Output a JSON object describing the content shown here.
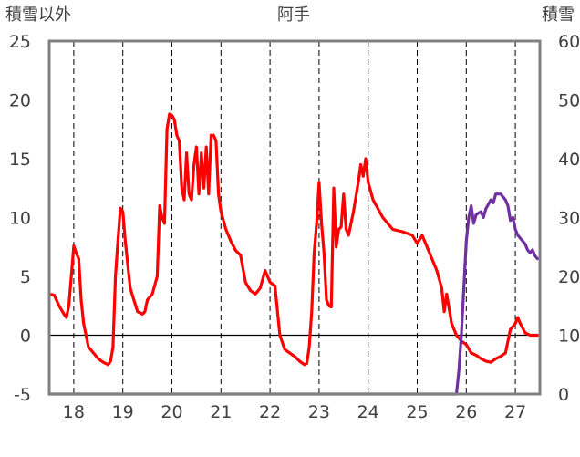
{
  "chart_data": {
    "type": "line",
    "title": "阿手",
    "left_axis_label": "積雪以外",
    "right_axis_label": "積雪",
    "left_ylim": [
      -5,
      25
    ],
    "left_ticks": [
      -5,
      0,
      5,
      10,
      15,
      20,
      25
    ],
    "right_ylim": [
      0,
      60
    ],
    "right_ticks": [
      0,
      10,
      20,
      30,
      40,
      50,
      60
    ],
    "xlim": [
      17.5,
      27.5
    ],
    "x_ticks": [
      18,
      19,
      20,
      21,
      22,
      23,
      24,
      25,
      26,
      27
    ],
    "x_tick_labels": [
      "18",
      "19",
      "20",
      "21",
      "22",
      "23",
      "24",
      "25",
      "26",
      "27"
    ],
    "grid": "vertical dashed at day boundaries, horizontal at 0",
    "series": [
      {
        "axis": "left",
        "color": "#ff0000",
        "points": [
          [
            17.5,
            3.5
          ],
          [
            17.6,
            3.4
          ],
          [
            17.7,
            2.5
          ],
          [
            17.8,
            1.8
          ],
          [
            17.85,
            1.5
          ],
          [
            17.9,
            2.5
          ],
          [
            17.95,
            5.0
          ],
          [
            18.0,
            7.6
          ],
          [
            18.05,
            7.0
          ],
          [
            18.1,
            6.5
          ],
          [
            18.15,
            3.0
          ],
          [
            18.2,
            1.0
          ],
          [
            18.3,
            -1.0
          ],
          [
            18.4,
            -1.5
          ],
          [
            18.5,
            -2.0
          ],
          [
            18.6,
            -2.3
          ],
          [
            18.7,
            -2.5
          ],
          [
            18.75,
            -2.2
          ],
          [
            18.8,
            -1.0
          ],
          [
            18.85,
            5.0
          ],
          [
            18.9,
            8.0
          ],
          [
            18.95,
            10.8
          ],
          [
            19.0,
            10.5
          ],
          [
            19.05,
            8.0
          ],
          [
            19.15,
            4.0
          ],
          [
            19.3,
            2.0
          ],
          [
            19.4,
            1.8
          ],
          [
            19.45,
            2.0
          ],
          [
            19.5,
            3.0
          ],
          [
            19.6,
            3.5
          ],
          [
            19.7,
            5.0
          ],
          [
            19.75,
            11.0
          ],
          [
            19.8,
            10.0
          ],
          [
            19.85,
            9.5
          ],
          [
            19.9,
            17.5
          ],
          [
            19.95,
            18.8
          ],
          [
            20.0,
            18.7
          ],
          [
            20.05,
            18.3
          ],
          [
            20.1,
            17.0
          ],
          [
            20.15,
            16.5
          ],
          [
            20.2,
            12.5
          ],
          [
            20.25,
            11.5
          ],
          [
            20.3,
            15.5
          ],
          [
            20.35,
            12.0
          ],
          [
            20.4,
            11.5
          ],
          [
            20.45,
            14.5
          ],
          [
            20.5,
            16.0
          ],
          [
            20.55,
            12.0
          ],
          [
            20.6,
            15.5
          ],
          [
            20.65,
            12.5
          ],
          [
            20.7,
            16.0
          ],
          [
            20.75,
            12.0
          ],
          [
            20.8,
            17.0
          ],
          [
            20.85,
            17.0
          ],
          [
            20.9,
            16.5
          ],
          [
            20.95,
            12.0
          ],
          [
            21.0,
            10.5
          ],
          [
            21.1,
            9.0
          ],
          [
            21.2,
            8.0
          ],
          [
            21.3,
            7.2
          ],
          [
            21.4,
            6.8
          ],
          [
            21.5,
            4.5
          ],
          [
            21.6,
            3.8
          ],
          [
            21.7,
            3.5
          ],
          [
            21.8,
            4.0
          ],
          [
            21.9,
            5.5
          ],
          [
            22.0,
            4.5
          ],
          [
            22.1,
            4.2
          ],
          [
            22.2,
            0.0
          ],
          [
            22.3,
            -1.2
          ],
          [
            22.4,
            -1.5
          ],
          [
            22.5,
            -1.8
          ],
          [
            22.6,
            -2.2
          ],
          [
            22.7,
            -2.5
          ],
          [
            22.75,
            -2.4
          ],
          [
            22.8,
            -1.0
          ],
          [
            22.85,
            2.0
          ],
          [
            22.9,
            7.0
          ],
          [
            22.95,
            9.5
          ],
          [
            23.0,
            13.0
          ],
          [
            23.05,
            9.5
          ],
          [
            23.1,
            7.0
          ],
          [
            23.15,
            3.0
          ],
          [
            23.2,
            2.5
          ],
          [
            23.25,
            2.4
          ],
          [
            23.3,
            12.5
          ],
          [
            23.35,
            7.5
          ],
          [
            23.4,
            9.0
          ],
          [
            23.45,
            9.2
          ],
          [
            23.5,
            12.0
          ],
          [
            23.55,
            9.0
          ],
          [
            23.6,
            8.5
          ],
          [
            23.7,
            10.5
          ],
          [
            23.8,
            13.0
          ],
          [
            23.85,
            14.5
          ],
          [
            23.9,
            13.5
          ],
          [
            23.95,
            15.0
          ],
          [
            24.0,
            13.0
          ],
          [
            24.1,
            11.5
          ],
          [
            24.3,
            10.0
          ],
          [
            24.5,
            9.0
          ],
          [
            24.7,
            8.8
          ],
          [
            24.9,
            8.5
          ],
          [
            25.0,
            7.8
          ],
          [
            25.1,
            8.5
          ],
          [
            25.2,
            7.5
          ],
          [
            25.3,
            6.5
          ],
          [
            25.4,
            5.5
          ],
          [
            25.5,
            4.0
          ],
          [
            25.55,
            2.0
          ],
          [
            25.6,
            3.5
          ],
          [
            25.7,
            1.0
          ],
          [
            25.8,
            0.0
          ],
          [
            25.9,
            -0.5
          ],
          [
            26.0,
            -0.8
          ],
          [
            26.1,
            -1.5
          ],
          [
            26.2,
            -1.7
          ],
          [
            26.3,
            -2.0
          ],
          [
            26.4,
            -2.2
          ],
          [
            26.5,
            -2.3
          ],
          [
            26.6,
            -2.0
          ],
          [
            26.7,
            -1.8
          ],
          [
            26.8,
            -1.5
          ],
          [
            26.9,
            0.5
          ],
          [
            27.0,
            1.0
          ],
          [
            27.05,
            1.5
          ],
          [
            27.1,
            1.0
          ],
          [
            27.2,
            0.2
          ],
          [
            27.3,
            0.0
          ],
          [
            27.45,
            0.0
          ]
        ]
      },
      {
        "axis": "right",
        "color": "#7030a0",
        "points": [
          [
            17.5,
            0.0
          ],
          [
            25.8,
            0.0
          ],
          [
            25.85,
            4.0
          ],
          [
            25.9,
            10.0
          ],
          [
            25.95,
            18.0
          ],
          [
            26.0,
            26.0
          ],
          [
            26.05,
            30.0
          ],
          [
            26.1,
            32.0
          ],
          [
            26.15,
            29.0
          ],
          [
            26.2,
            30.5
          ],
          [
            26.3,
            31.0
          ],
          [
            26.35,
            30.0
          ],
          [
            26.4,
            31.5
          ],
          [
            26.5,
            33.0
          ],
          [
            26.55,
            32.5
          ],
          [
            26.6,
            34.0
          ],
          [
            26.7,
            34.0
          ],
          [
            26.8,
            33.0
          ],
          [
            26.85,
            32.0
          ],
          [
            26.9,
            29.5
          ],
          [
            26.95,
            30.0
          ],
          [
            27.0,
            28.0
          ],
          [
            27.05,
            27.0
          ],
          [
            27.1,
            26.5
          ],
          [
            27.2,
            25.5
          ],
          [
            27.25,
            24.5
          ],
          [
            27.3,
            24.0
          ],
          [
            27.35,
            24.5
          ],
          [
            27.4,
            23.5
          ],
          [
            27.45,
            23.0
          ]
        ]
      }
    ]
  }
}
